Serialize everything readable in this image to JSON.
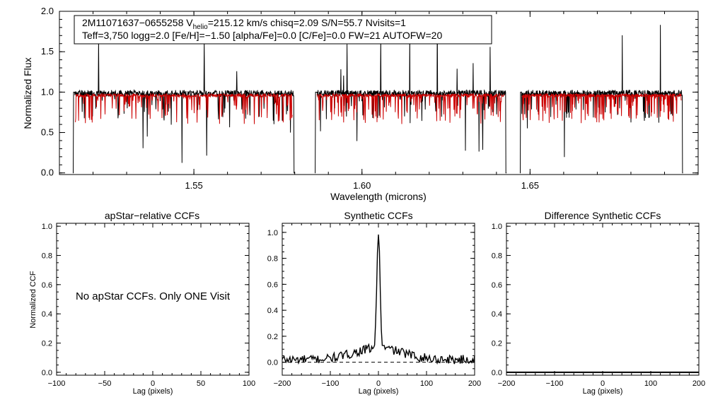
{
  "chart_data": [
    {
      "type": "line",
      "info": {
        "line1_pre": "2M11071637−0655258  V",
        "line1_sub": "helio",
        "line1_post": "=215.12 km/s  chisq=2.09  S/N=55.7  Nvisits=1",
        "line2": "Teff=3,750 logg=2.0 [Fe/H]=−1.50 [alpha/Fe]=0.0 [C/Fe]=0.0 FW=21 AUTOFW=20"
      },
      "xlabel": "Wavelength (microns)",
      "ylabel": "Normalized Flux",
      "xlim": [
        1.51,
        1.7
      ],
      "ylim": [
        -0.02,
        2.0
      ],
      "xticks": [
        1.55,
        1.6,
        1.65
      ],
      "xtick_labels": [
        "1.55",
        "1.60",
        "1.65"
      ],
      "yticks": [
        0.0,
        0.5,
        1.0,
        1.5,
        2.0
      ],
      "ytick_labels": [
        "0.0",
        "0.5",
        "1.0",
        "1.5",
        "2.0"
      ],
      "chip_ranges": [
        [
          1.514,
          1.58
        ],
        [
          1.586,
          1.643
        ],
        [
          1.647,
          1.6955
        ]
      ],
      "series": [
        {
          "color": "#000000",
          "role": "observed"
        },
        {
          "color": "#cc0000",
          "role": "model"
        }
      ]
    },
    {
      "type": "line",
      "title": "apStar−relative CCFs",
      "xlabel": "Lag (pixels)",
      "ylabel": "Normalized CCF",
      "xlim": [
        -100,
        100
      ],
      "ylim": [
        -0.02,
        1.02
      ],
      "xticks": [
        -100,
        -50,
        0,
        50,
        100
      ],
      "xtick_labels": [
        "−100",
        "−50",
        "0",
        "50",
        "100"
      ],
      "yticks": [
        0.0,
        0.2,
        0.4,
        0.6,
        0.8,
        1.0
      ],
      "ytick_labels": [
        "0.0",
        "0.2",
        "0.4",
        "0.6",
        "0.8",
        "1.0"
      ],
      "annotation": "No apStar CCFs.  Only ONE Visit"
    },
    {
      "type": "line",
      "title": "Synthetic CCFs",
      "xlabel": "Lag (pixels)",
      "xlim": [
        -200,
        200
      ],
      "ylim": [
        -0.1,
        1.07
      ],
      "xticks": [
        -200,
        -100,
        0,
        100,
        200
      ],
      "xtick_labels": [
        "−200",
        "−100",
        "0",
        "100",
        "200"
      ],
      "yticks": [
        0.0,
        0.2,
        0.4,
        0.6,
        0.8,
        1.0
      ],
      "ytick_labels": [
        "0.0",
        "0.2",
        "0.4",
        "0.6",
        "0.8",
        "1.0"
      ],
      "peak": {
        "x": 0,
        "y": 1.0
      }
    },
    {
      "type": "line",
      "title": "Difference Synthetic CCFs",
      "xlabel": "Lag (pixels)",
      "xlim": [
        -200,
        200
      ],
      "ylim": [
        -0.02,
        1.02
      ],
      "xticks": [
        -200,
        -100,
        0,
        100,
        200
      ],
      "xtick_labels": [
        "−200",
        "−100",
        "0",
        "100",
        "200"
      ],
      "yticks": [
        0.0,
        0.2,
        0.4,
        0.6,
        0.8,
        1.0
      ],
      "ytick_labels": [
        "0.0",
        "0.2",
        "0.4",
        "0.6",
        "0.8",
        "1.0"
      ],
      "series_y": 0.0
    }
  ]
}
